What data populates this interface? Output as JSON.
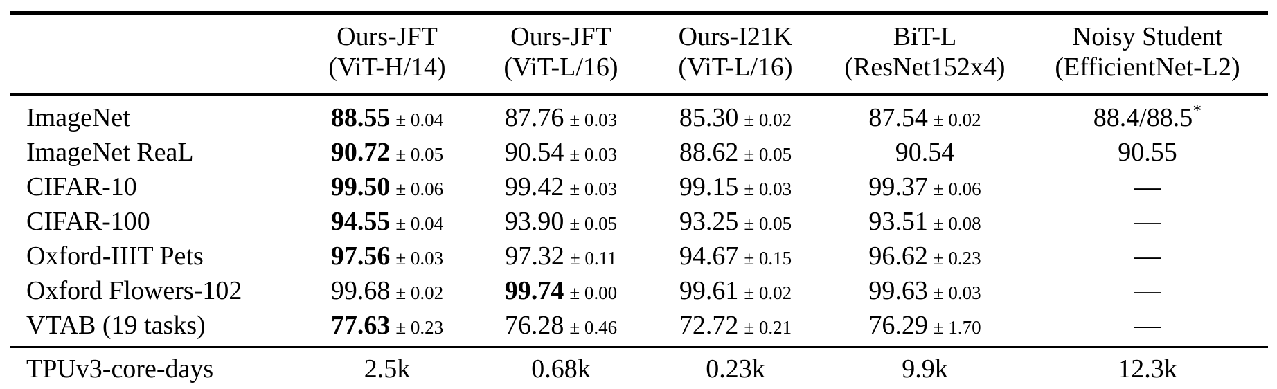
{
  "colors": {
    "text": "#000000",
    "background": "#ffffff",
    "rule": "#000000"
  },
  "table": {
    "columns": [
      {
        "line1": "Ours-JFT",
        "line2": "(ViT-H/14)"
      },
      {
        "line1": "Ours-JFT",
        "line2": "(ViT-L/16)"
      },
      {
        "line1": "Ours-I21K",
        "line2": "(ViT-L/16)"
      },
      {
        "line1": "BiT-L",
        "line2": "(ResNet152x4)"
      },
      {
        "line1": "Noisy Student",
        "line2": "(EfficientNet-L2)"
      }
    ],
    "rows": [
      {
        "label": "ImageNet",
        "cells": [
          {
            "value": "88.55",
            "pm": "± 0.04",
            "bold": true
          },
          {
            "value": "87.76",
            "pm": "± 0.03"
          },
          {
            "value": "85.30",
            "pm": "± 0.02"
          },
          {
            "value": "87.54",
            "pm": "± 0.02"
          },
          {
            "value": "88.4/88.5",
            "sup": "*"
          }
        ]
      },
      {
        "label": "ImageNet ReaL",
        "cells": [
          {
            "value": "90.72",
            "pm": "± 0.05",
            "bold": true
          },
          {
            "value": "90.54",
            "pm": "± 0.03"
          },
          {
            "value": "88.62",
            "pm": "± 0.05"
          },
          {
            "value": "90.54"
          },
          {
            "value": "90.55"
          }
        ]
      },
      {
        "label": "CIFAR-10",
        "cells": [
          {
            "value": "99.50",
            "pm": "± 0.06",
            "bold": true
          },
          {
            "value": "99.42",
            "pm": "± 0.03"
          },
          {
            "value": "99.15",
            "pm": "± 0.03"
          },
          {
            "value": "99.37",
            "pm": "± 0.06"
          },
          {
            "value": "—"
          }
        ]
      },
      {
        "label": "CIFAR-100",
        "cells": [
          {
            "value": "94.55",
            "pm": "± 0.04",
            "bold": true
          },
          {
            "value": "93.90",
            "pm": "± 0.05"
          },
          {
            "value": "93.25",
            "pm": "± 0.05"
          },
          {
            "value": "93.51",
            "pm": "± 0.08"
          },
          {
            "value": "—"
          }
        ]
      },
      {
        "label": "Oxford-IIIT Pets",
        "cells": [
          {
            "value": "97.56",
            "pm": "± 0.03",
            "bold": true
          },
          {
            "value": "97.32",
            "pm": "± 0.11"
          },
          {
            "value": "94.67",
            "pm": "± 0.15"
          },
          {
            "value": "96.62",
            "pm": "± 0.23"
          },
          {
            "value": "—"
          }
        ]
      },
      {
        "label": "Oxford Flowers-102",
        "cells": [
          {
            "value": "99.68",
            "pm": "± 0.02"
          },
          {
            "value": "99.74",
            "pm": "± 0.00",
            "bold": true
          },
          {
            "value": "99.61",
            "pm": "± 0.02"
          },
          {
            "value": "99.63",
            "pm": "± 0.03"
          },
          {
            "value": "—"
          }
        ]
      },
      {
        "label": "VTAB (19 tasks)",
        "cells": [
          {
            "value": "77.63",
            "pm": "± 0.23",
            "bold": true
          },
          {
            "value": "76.28",
            "pm": "± 0.46"
          },
          {
            "value": "72.72",
            "pm": "± 0.21"
          },
          {
            "value": "76.29",
            "pm": "± 1.70"
          },
          {
            "value": "—"
          }
        ]
      }
    ],
    "footer": {
      "label": "TPUv3-core-days",
      "cells": [
        {
          "value": "2.5k"
        },
        {
          "value": "0.68k"
        },
        {
          "value": "0.23k"
        },
        {
          "value": "9.9k"
        },
        {
          "value": "12.3k"
        }
      ]
    }
  }
}
